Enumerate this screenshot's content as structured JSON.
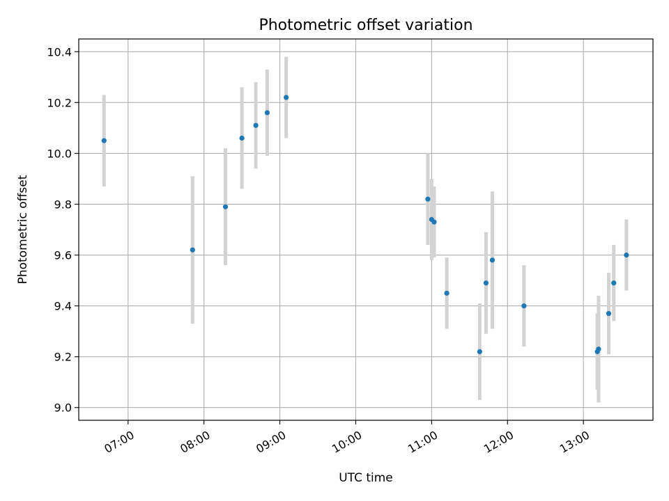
{
  "chart_data": {
    "type": "scatter",
    "title": "Photometric offset variation",
    "xlabel": "UTC time",
    "ylabel": "Photometric offset",
    "x_unit": "UTC time (HH:MM)",
    "xlim": [
      "06:21",
      "13:55"
    ],
    "ylim": [
      8.95,
      10.45
    ],
    "xticks": [
      "07:00",
      "08:00",
      "09:00",
      "10:00",
      "11:00",
      "12:00",
      "13:00"
    ],
    "yticks": [
      "9.0",
      "9.2",
      "9.4",
      "9.6",
      "9.8",
      "10.0",
      "10.2",
      "10.4"
    ],
    "grid": true,
    "point_color": "#1f77b4",
    "errorbar_color": "#d3d3d3",
    "series": [
      {
        "points": [
          {
            "x": "06:41",
            "y": 10.05,
            "err": 0.18
          },
          {
            "x": "07:51",
            "y": 9.62,
            "err": 0.29
          },
          {
            "x": "08:17",
            "y": 9.79,
            "err": 0.23
          },
          {
            "x": "08:30",
            "y": 10.06,
            "err": 0.2
          },
          {
            "x": "08:41",
            "y": 10.11,
            "err": 0.17
          },
          {
            "x": "08:50",
            "y": 10.16,
            "err": 0.17
          },
          {
            "x": "09:05",
            "y": 10.22,
            "err": 0.16
          },
          {
            "x": "10:57",
            "y": 9.82,
            "err": 0.18
          },
          {
            "x": "11:00",
            "y": 9.74,
            "err": 0.16
          },
          {
            "x": "11:02",
            "y": 9.73,
            "err": 0.14
          },
          {
            "x": "11:12",
            "y": 9.45,
            "err": 0.14
          },
          {
            "x": "11:38",
            "y": 9.22,
            "err": 0.19
          },
          {
            "x": "11:43",
            "y": 9.49,
            "err": 0.2
          },
          {
            "x": "11:48",
            "y": 9.58,
            "err": 0.27
          },
          {
            "x": "12:13",
            "y": 9.4,
            "err": 0.16
          },
          {
            "x": "13:11",
            "y": 9.22,
            "err": 0.15
          },
          {
            "x": "13:12",
            "y": 9.23,
            "err": 0.21
          },
          {
            "x": "13:20",
            "y": 9.37,
            "err": 0.16
          },
          {
            "x": "13:24",
            "y": 9.49,
            "err": 0.15
          },
          {
            "x": "13:34",
            "y": 9.6,
            "err": 0.14
          }
        ]
      }
    ]
  }
}
